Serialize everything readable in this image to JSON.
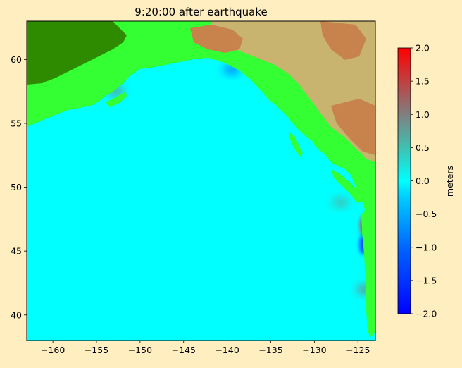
{
  "chart_data": {
    "type": "heatmap",
    "title": "9:20:00 after earthquake",
    "xlabel": "",
    "ylabel": "",
    "xlim": [
      -163,
      -123
    ],
    "ylim": [
      38,
      63
    ],
    "x_ticks": [
      {
        "value": -160,
        "label": "−160"
      },
      {
        "value": -155,
        "label": "−155"
      },
      {
        "value": -150,
        "label": "−150"
      },
      {
        "value": -145,
        "label": "−145"
      },
      {
        "value": -140,
        "label": "−140"
      },
      {
        "value": -135,
        "label": "−135"
      },
      {
        "value": -130,
        "label": "−130"
      },
      {
        "value": -125,
        "label": "−125"
      }
    ],
    "y_ticks": [
      {
        "value": 40,
        "label": "40"
      },
      {
        "value": 45,
        "label": "45"
      },
      {
        "value": 50,
        "label": "50"
      },
      {
        "value": 55,
        "label": "55"
      },
      {
        "value": 60,
        "label": "60"
      }
    ],
    "colorbar": {
      "label": "meters",
      "range": [
        -2.0,
        2.0
      ],
      "ticks": [
        {
          "value": 2.0,
          "label": "2.0"
        },
        {
          "value": 1.5,
          "label": "1.5"
        },
        {
          "value": 1.0,
          "label": "1.0"
        },
        {
          "value": 0.5,
          "label": "0.5"
        },
        {
          "value": 0.0,
          "label": "0.0"
        },
        {
          "value": -0.5,
          "label": "−0.5"
        },
        {
          "value": -1.0,
          "label": "−1.0"
        },
        {
          "value": -1.5,
          "label": "−1.5"
        },
        {
          "value": -2.0,
          "label": "−2.0"
        }
      ],
      "colormap_stops": [
        {
          "value": -2.0,
          "color": "#0000ff"
        },
        {
          "value": -1.0,
          "color": "#0066ff"
        },
        {
          "value": -0.25,
          "color": "#00ccff"
        },
        {
          "value": 0.0,
          "color": "#00ffff"
        },
        {
          "value": 0.5,
          "color": "#40c0b0"
        },
        {
          "value": 1.0,
          "color": "#808080"
        },
        {
          "value": 1.5,
          "color": "#c04040"
        },
        {
          "value": 2.0,
          "color": "#ff0000"
        }
      ]
    },
    "colors": {
      "ocean": "#00ffff",
      "land_lowland": "#33ff33",
      "land_forest": "#2e8b00",
      "land_highland": "#c8b46e",
      "land_mountain": "#c8824b",
      "background": "#ffeebf"
    },
    "anomalies": [
      {
        "name": "cook-inlet",
        "lon": -151.5,
        "lat": 59.8,
        "value": -1.2
      },
      {
        "name": "gulf-trough",
        "lon": -139.5,
        "lat": 59.2,
        "value": -0.7
      },
      {
        "name": "kodiak-wake",
        "lon": -152.8,
        "lat": 57.5,
        "value": 0.7
      },
      {
        "name": "oregon-coast-red",
        "lon": -124.3,
        "lat": 47.0,
        "value": 1.8
      },
      {
        "name": "oregon-coast-blue",
        "lon": -124.4,
        "lat": 45.5,
        "value": -1.4
      },
      {
        "name": "california-coast",
        "lon": -124.2,
        "lat": 42.0,
        "value": 0.8
      },
      {
        "name": "offshore-shoal",
        "lon": -127.0,
        "lat": 48.8,
        "value": 0.5
      }
    ]
  }
}
